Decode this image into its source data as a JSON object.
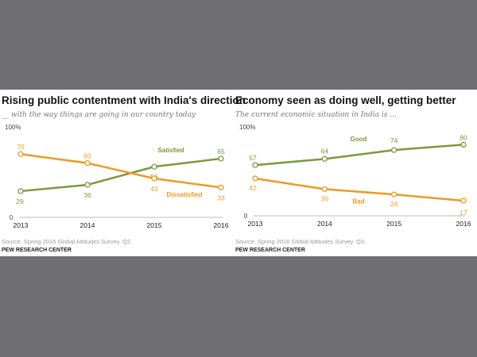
{
  "chart_data": [
    {
      "type": "line",
      "title": "Rising public contentment with India's direction",
      "subtitle": "__ with the way things are going in our country today",
      "categories": [
        "2013",
        "2014",
        "2015",
        "2016"
      ],
      "ylim": [
        0,
        100
      ],
      "ytick_labels": [
        "0",
        "100%"
      ],
      "series": [
        {
          "name": "Satisfied",
          "values": [
            29,
            36,
            56,
            65
          ],
          "color": "#7b9a3a"
        },
        {
          "name": "Dissatisfied",
          "values": [
            70,
            60,
            43,
            33
          ],
          "color": "#ef9a1f"
        }
      ],
      "source": "Source: Spring 2016 Global Attitudes Survey. Q2.",
      "org": "PEW RESEARCH CENTER"
    },
    {
      "type": "line",
      "title": "Economy seen as doing well, getting better",
      "subtitle": "The current economic situation in India is ...",
      "categories": [
        "2013",
        "2014",
        "2015",
        "2016"
      ],
      "ylim": [
        0,
        100
      ],
      "ytick_labels": [
        "0",
        "100%"
      ],
      "series": [
        {
          "name": "Good",
          "values": [
            57,
            64,
            74,
            80
          ],
          "color": "#7b9a3a"
        },
        {
          "name": "Bad",
          "values": [
            42,
            30,
            24,
            17
          ],
          "color": "#ef9a1f"
        }
      ],
      "source": "Source: Spring 2016 Global Attitudes Survey. Q3.",
      "org": "PEW RESEARCH CENTER"
    }
  ]
}
